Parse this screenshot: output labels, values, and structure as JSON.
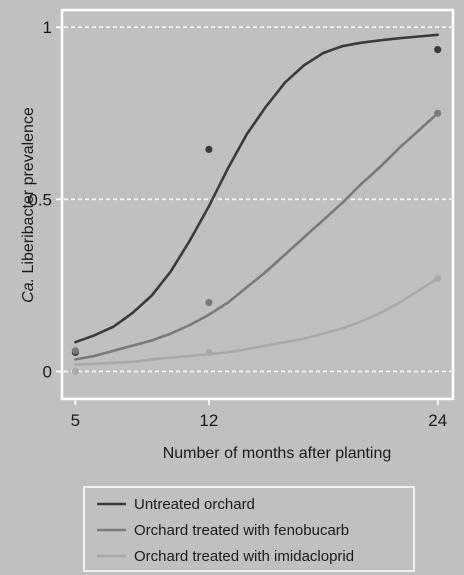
{
  "chart_data": {
    "type": "line",
    "title": "",
    "xlabel": "Number of months after planting",
    "ylabel_italic": "Ca.",
    "ylabel_rest": " Liberibacter prevalence",
    "x_ticks": [
      5,
      12,
      24
    ],
    "y_ticks": [
      0,
      0.5,
      1
    ],
    "x_tick_labels": [
      "5",
      "12",
      "24"
    ],
    "y_tick_labels": [
      "0",
      "0.5",
      "1"
    ],
    "xlim": [
      4.3,
      24.8
    ],
    "ylim": [
      -0.08,
      1.05
    ],
    "grid": "dashed-horizontal",
    "legend_position": "bottom",
    "series": [
      {
        "name": "Untreated orchard",
        "color": "#3a3a3a",
        "points": [
          [
            5,
            0.055
          ],
          [
            12,
            0.645
          ],
          [
            24,
            0.935
          ]
        ],
        "curve": [
          [
            5,
            0.085
          ],
          [
            6,
            0.105
          ],
          [
            7,
            0.13
          ],
          [
            8,
            0.17
          ],
          [
            9,
            0.22
          ],
          [
            10,
            0.29
          ],
          [
            11,
            0.38
          ],
          [
            12,
            0.48
          ],
          [
            13,
            0.59
          ],
          [
            14,
            0.69
          ],
          [
            15,
            0.77
          ],
          [
            16,
            0.84
          ],
          [
            17,
            0.89
          ],
          [
            18,
            0.925
          ],
          [
            19,
            0.945
          ],
          [
            20,
            0.955
          ],
          [
            21,
            0.962
          ],
          [
            22,
            0.968
          ],
          [
            23,
            0.973
          ],
          [
            24,
            0.978
          ]
        ]
      },
      {
        "name": "Orchard treated with fenobucarb",
        "color": "#7a7a7a",
        "points": [
          [
            5,
            0.06
          ],
          [
            12,
            0.2
          ],
          [
            24,
            0.75
          ]
        ],
        "curve": [
          [
            5,
            0.035
          ],
          [
            6,
            0.045
          ],
          [
            7,
            0.06
          ],
          [
            8,
            0.075
          ],
          [
            9,
            0.09
          ],
          [
            10,
            0.11
          ],
          [
            11,
            0.135
          ],
          [
            12,
            0.165
          ],
          [
            13,
            0.2
          ],
          [
            14,
            0.245
          ],
          [
            15,
            0.29
          ],
          [
            16,
            0.34
          ],
          [
            17,
            0.39
          ],
          [
            18,
            0.44
          ],
          [
            19,
            0.49
          ],
          [
            20,
            0.545
          ],
          [
            21,
            0.595
          ],
          [
            22,
            0.65
          ],
          [
            23,
            0.7
          ],
          [
            24,
            0.75
          ]
        ]
      },
      {
        "name": "Orchard treated with imidacloprid",
        "color": "#a8a8a8",
        "points": [
          [
            5,
            0.0
          ],
          [
            12,
            0.055
          ],
          [
            24,
            0.27
          ]
        ],
        "curve": [
          [
            5,
            0.02
          ],
          [
            6,
            0.022
          ],
          [
            7,
            0.025
          ],
          [
            8,
            0.028
          ],
          [
            9,
            0.035
          ],
          [
            10,
            0.04
          ],
          [
            11,
            0.045
          ],
          [
            12,
            0.05
          ],
          [
            13,
            0.055
          ],
          [
            14,
            0.065
          ],
          [
            15,
            0.075
          ],
          [
            16,
            0.085
          ],
          [
            17,
            0.095
          ],
          [
            18,
            0.11
          ],
          [
            19,
            0.125
          ],
          [
            20,
            0.145
          ],
          [
            21,
            0.17
          ],
          [
            22,
            0.2
          ],
          [
            23,
            0.235
          ],
          [
            24,
            0.27
          ]
        ]
      }
    ]
  }
}
